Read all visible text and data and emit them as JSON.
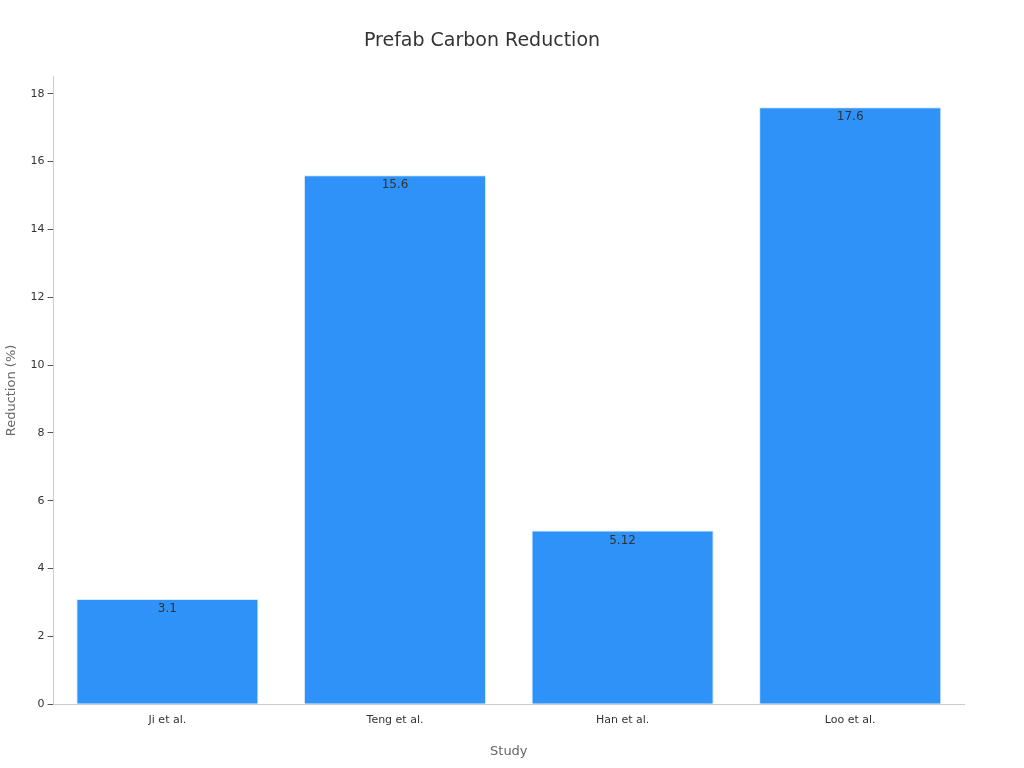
{
  "chart_data": {
    "type": "bar",
    "title": "Prefab Carbon Reduction",
    "xlabel": "Study",
    "ylabel": "Reduction (%)",
    "categories": [
      "Ji et al.",
      "Teng et al.",
      "Han et al.",
      "Loo et al."
    ],
    "values": [
      3.1,
      15.6,
      5.12,
      17.6
    ],
    "color": "#2f92f8",
    "ylim": [
      0,
      18.5
    ],
    "yticks": [
      0,
      2,
      4,
      6,
      8,
      10,
      12,
      14,
      16,
      18
    ],
    "grid": false,
    "legend": false,
    "data_labels": true
  }
}
